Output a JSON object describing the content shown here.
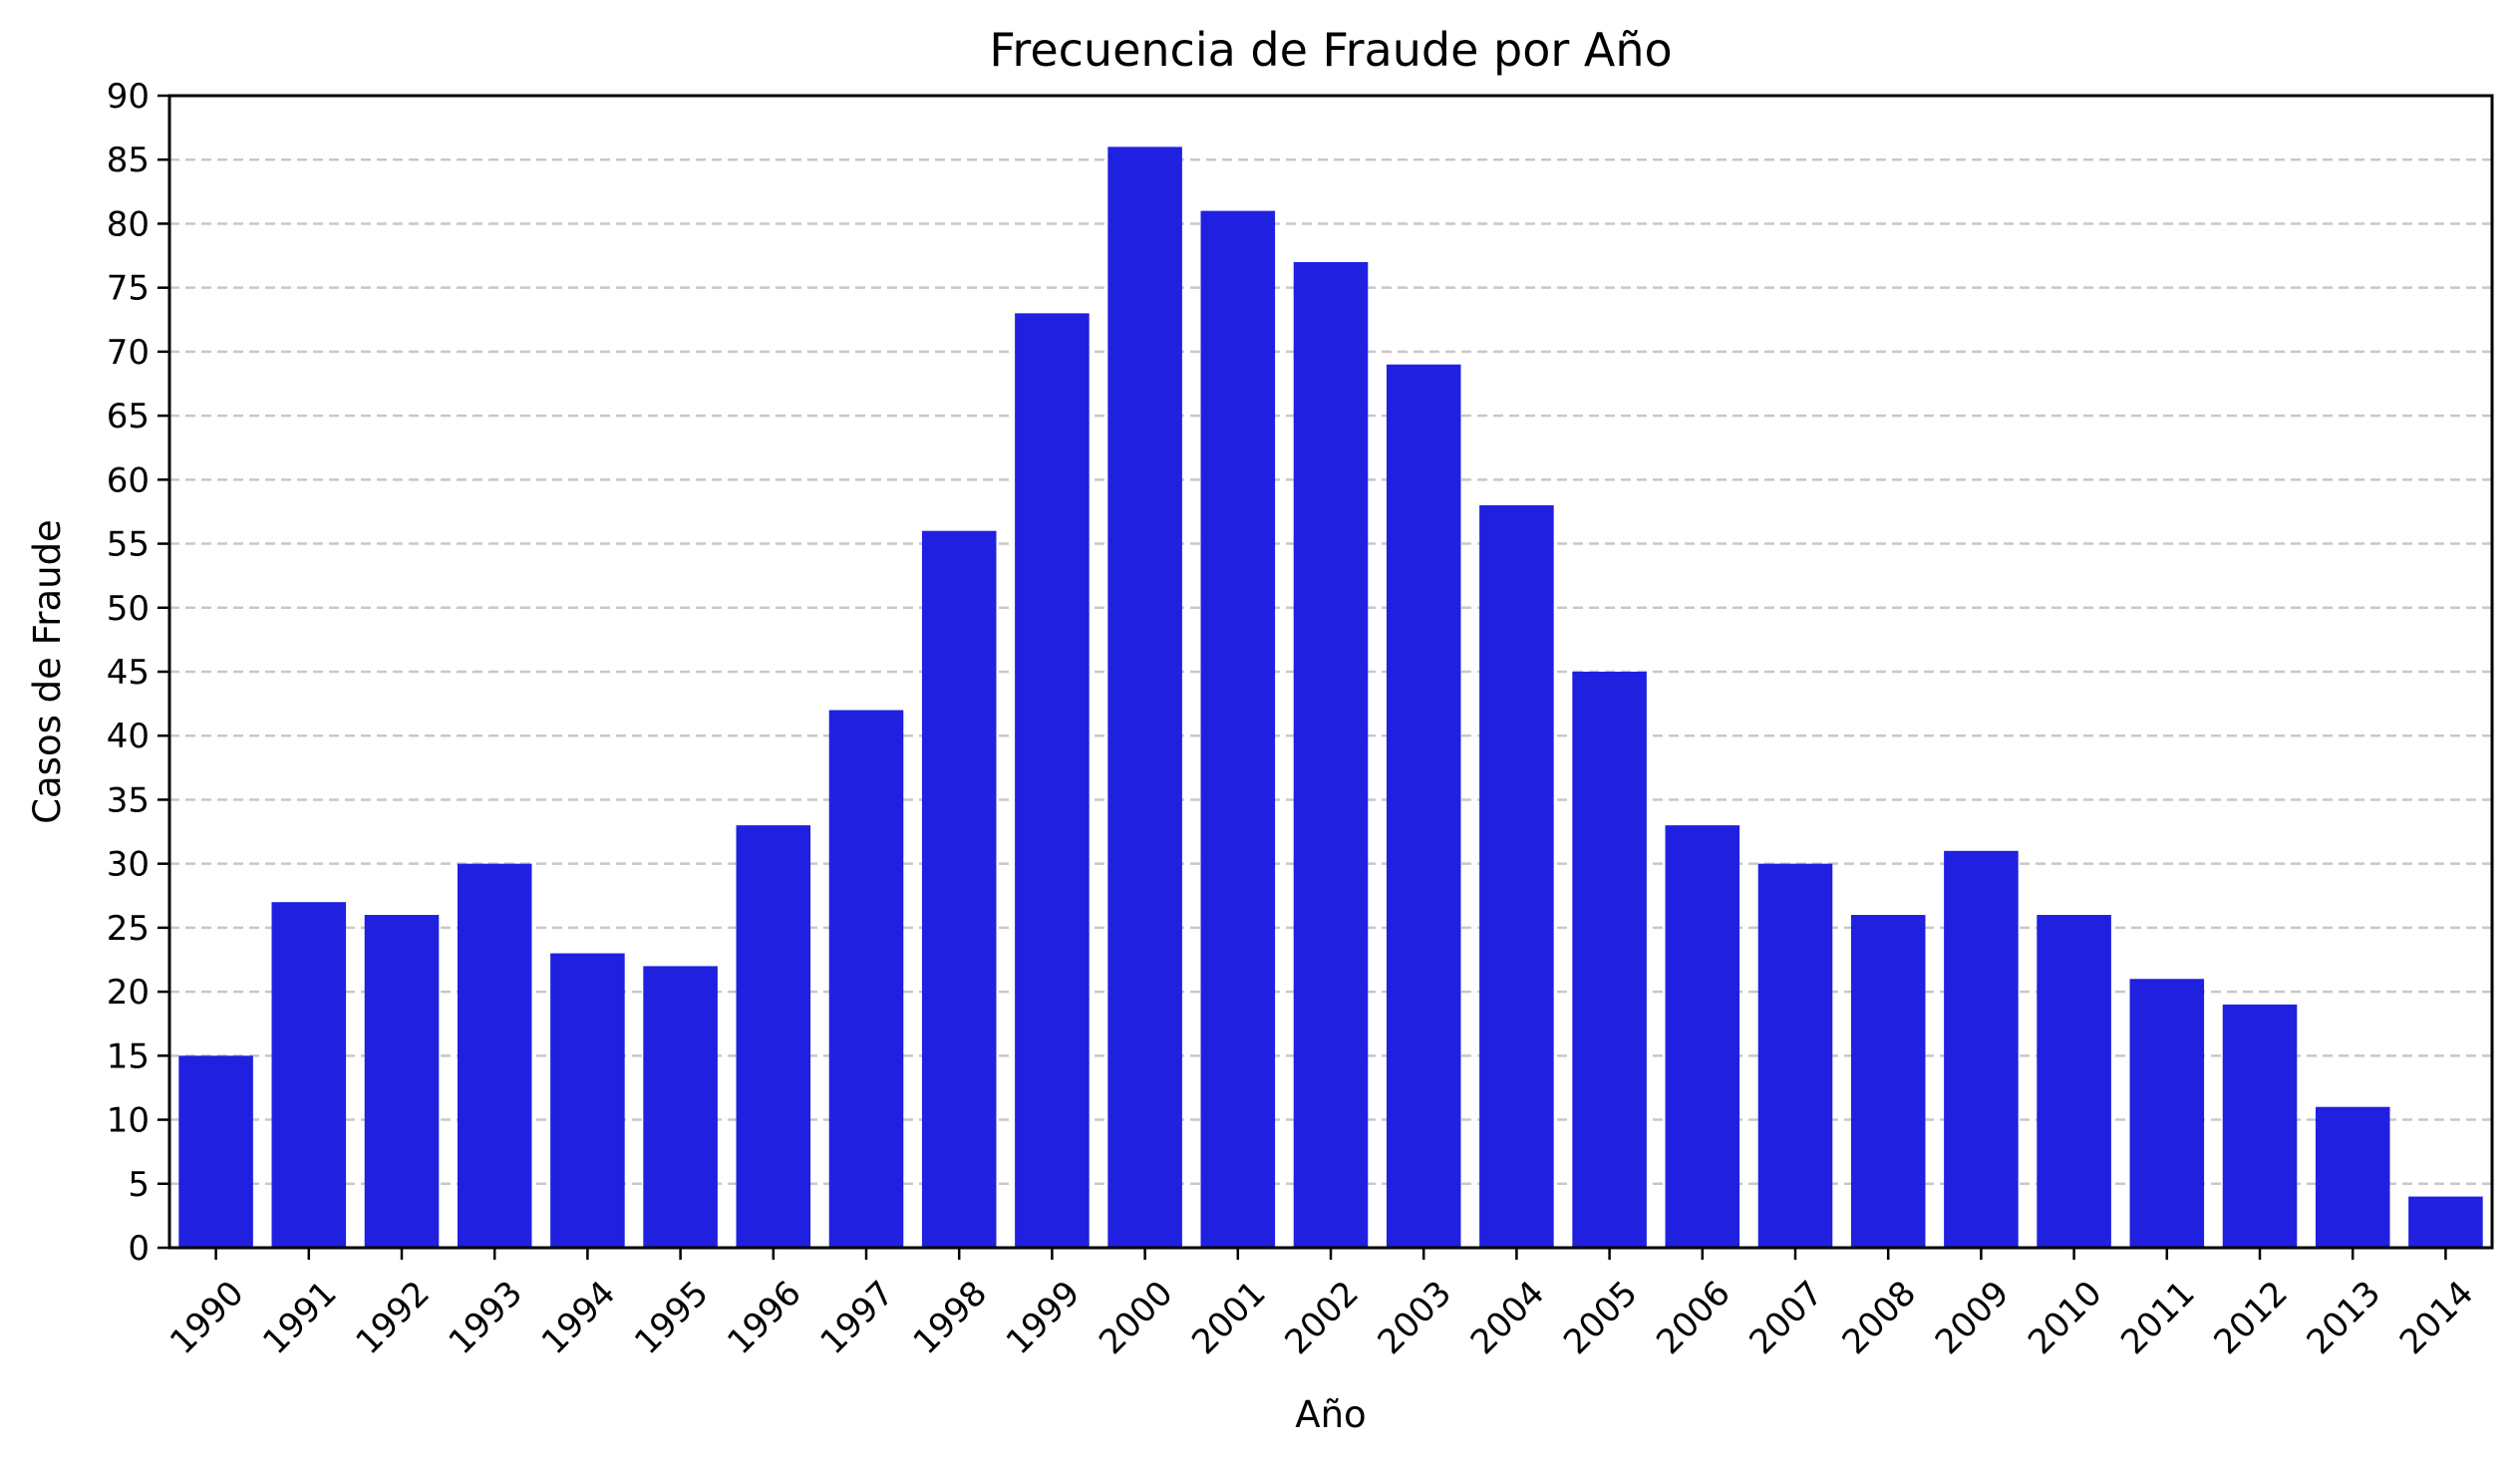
{
  "chart_data": {
    "type": "bar",
    "title": "Frecuencia de Fraude por Año",
    "xlabel": "Año",
    "ylabel": "Casos de Fraude",
    "categories": [
      "1990",
      "1991",
      "1992",
      "1993",
      "1994",
      "1995",
      "1996",
      "1997",
      "1998",
      "1999",
      "2000",
      "2001",
      "2002",
      "2003",
      "2004",
      "2005",
      "2006",
      "2007",
      "2008",
      "2009",
      "2010",
      "2011",
      "2012",
      "2013",
      "2014"
    ],
    "values": [
      15,
      27,
      26,
      30,
      23,
      22,
      33,
      42,
      56,
      73,
      86,
      81,
      77,
      69,
      58,
      45,
      33,
      30,
      26,
      31,
      26,
      21,
      19,
      11,
      4
    ],
    "ylim": [
      0,
      90
    ],
    "yticks": [
      0,
      5,
      10,
      15,
      20,
      25,
      30,
      35,
      40,
      45,
      50,
      55,
      60,
      65,
      70,
      75,
      80,
      85,
      90
    ],
    "grid": "horizontal dashed",
    "bar_color": "#2020e0",
    "grid_color": "#c8c8c8"
  }
}
